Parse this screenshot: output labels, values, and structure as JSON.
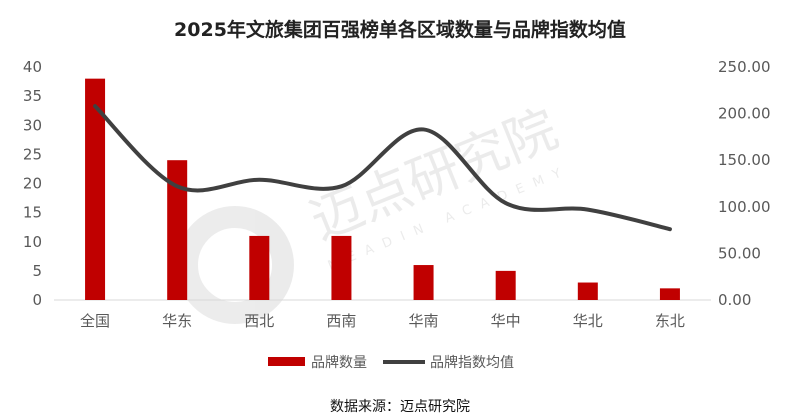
{
  "chart_data": {
    "type": "bar+line",
    "title": "2025年文旅集团百强榜单各区域数量与品牌指数均值",
    "categories": [
      "全国",
      "华东",
      "西北",
      "西南",
      "华南",
      "华中",
      "华北",
      "东北"
    ],
    "series": [
      {
        "name": "品牌数量",
        "type": "bar",
        "axis": "left",
        "color": "#C00000",
        "values": [
          38,
          24,
          11,
          11,
          6,
          5,
          3,
          2
        ]
      },
      {
        "name": "品牌指数均值",
        "type": "line",
        "axis": "right",
        "color": "#404040",
        "smooth": true,
        "values": [
          208,
          122,
          129,
          122,
          183,
          104,
          97,
          76
        ]
      }
    ],
    "y_left": {
      "range": [
        0,
        40
      ],
      "ticks": [
        "0",
        "5",
        "10",
        "15",
        "20",
        "25",
        "30",
        "35",
        "40"
      ]
    },
    "y_right": {
      "range": [
        0,
        250
      ],
      "ticks": [
        "0.00",
        "50.00",
        "100.00",
        "150.00",
        "200.00",
        "250.00"
      ]
    },
    "grid": false,
    "legend_position": "bottom"
  },
  "source": "数据来源：迈点研究院",
  "watermark": {
    "text": "迈点研究院",
    "subtext": "MEADIN ACADEMY"
  }
}
